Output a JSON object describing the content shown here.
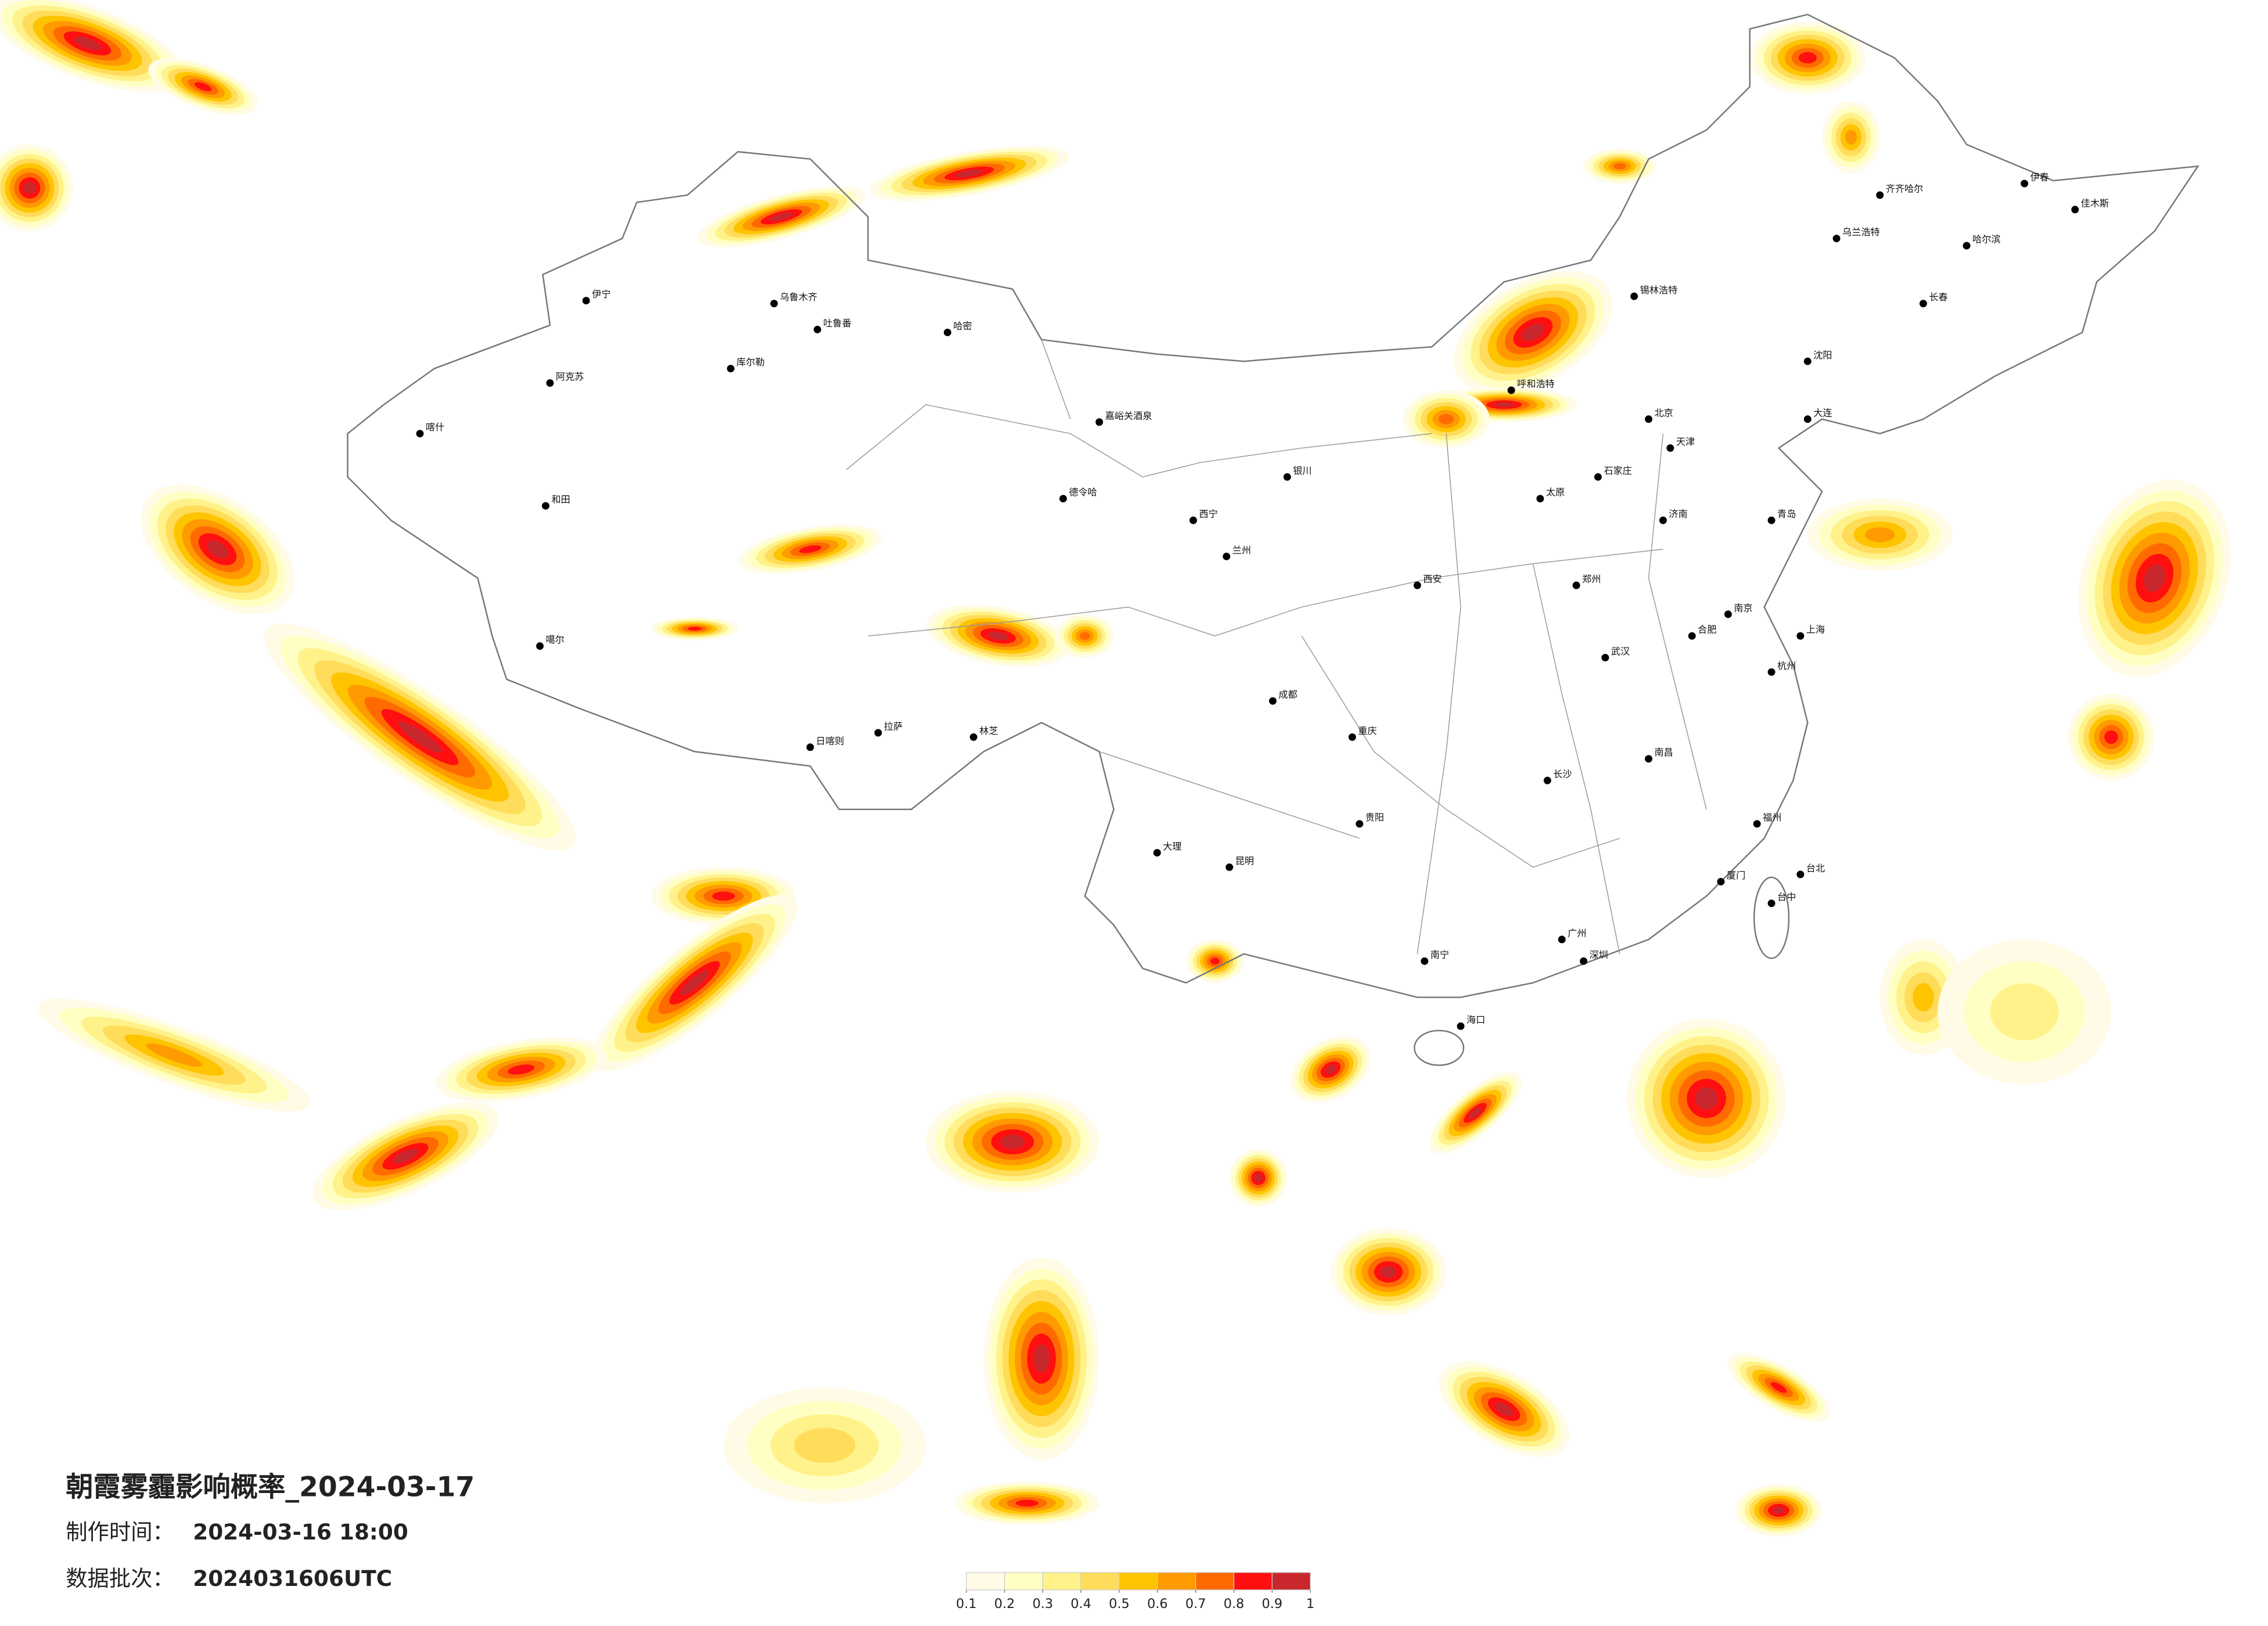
{
  "title": "朝霞雾霾影响概率_2024-03-17",
  "production_time": {
    "label": "制作时间：",
    "value": "2024-03-16 18:00"
  },
  "batch": {
    "label": "数据批次：",
    "value": "2024031606UTC"
  },
  "colorbar": {
    "ticks": [
      0.1,
      0.2,
      0.3,
      0.4,
      0.5,
      0.6,
      0.7,
      0.8,
      0.9,
      1
    ],
    "colors": [
      "#fffbe6",
      "#ffffc4",
      "#fff28a",
      "#ffdc5a",
      "#ffc400",
      "#ff9a00",
      "#ff6a00",
      "#ff0f0f",
      "#c8282d"
    ]
  },
  "cities": [
    "伊宁",
    "乌鲁木齐",
    "吐鲁番",
    "喀什",
    "阿克苏",
    "和田",
    "库尔勒",
    "哈密",
    "噶尔",
    "日喀则",
    "拉萨",
    "林芝",
    "嘉峪关酒泉",
    "德令哈",
    "西宁",
    "兰州",
    "银川",
    "呼和浩特",
    "北京",
    "天津",
    "石家庄",
    "太原",
    "济南",
    "青岛",
    "郑州",
    "西安",
    "成都",
    "重庆",
    "武汉",
    "南京",
    "上海",
    "杭州",
    "合肥",
    "长沙",
    "南昌",
    "福州",
    "厦门",
    "广州",
    "深圳",
    "南宁",
    "海口",
    "贵阳",
    "昆明",
    "大理",
    "台北",
    "台中",
    "沈阳",
    "大连",
    "长春",
    "哈尔滨",
    "齐齐哈尔",
    "锡林浩特",
    "乌兰浩特",
    "伊春",
    "佳木斯"
  ]
}
